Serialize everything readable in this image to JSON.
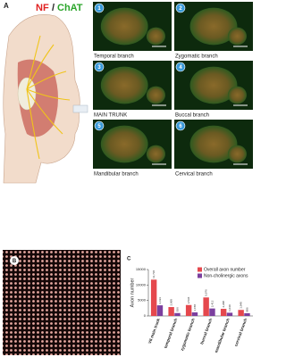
{
  "figure": {
    "panel_a": {
      "letter": "A",
      "stain_nf": "NF",
      "separator": "/",
      "stain_chat": "ChAT",
      "micrographs": [
        {
          "number": "1",
          "label": "Temporal branch"
        },
        {
          "number": "2",
          "label": "Zygomatic branch"
        },
        {
          "number": "3",
          "label": "MAIN TRUNK"
        },
        {
          "number": "4",
          "label": "Buccal branch"
        },
        {
          "number": "5",
          "label": "Mandibular branch"
        },
        {
          "number": "6",
          "label": "Cervical branch"
        }
      ]
    },
    "panel_b": {
      "letter": "B"
    },
    "panel_c": {
      "letter": "C"
    }
  },
  "chart_data": {
    "type": "bar",
    "y_label": "Axon number",
    "categories": [
      "VII main trunk",
      "temporal branch",
      "zygomatic branch",
      "buccal branch",
      "mandibular branch",
      "cervical branch"
    ],
    "series": [
      {
        "name": "Overall axon number",
        "color": "#e5484d",
        "values": [
          11736,
          2868,
          3536,
          5976,
          2298,
          1948
        ],
        "value_labels": [
          "11,736",
          "2,868",
          "3,536",
          "5,976",
          "2,298",
          "1,948"
        ]
      },
      {
        "name": "Non-cholinergic axons",
        "color": "#7b3f9e",
        "values": [
          3433,
          936,
          1158,
          2412,
          1040,
          886
        ],
        "value_labels": [
          "3,433",
          "936",
          "1,158",
          "2,412",
          "1,040",
          "886"
        ]
      }
    ],
    "ylim": [
      0,
      15000
    ],
    "yticks": [
      0,
      5000,
      10000,
      15000
    ],
    "legend": "upper right"
  }
}
